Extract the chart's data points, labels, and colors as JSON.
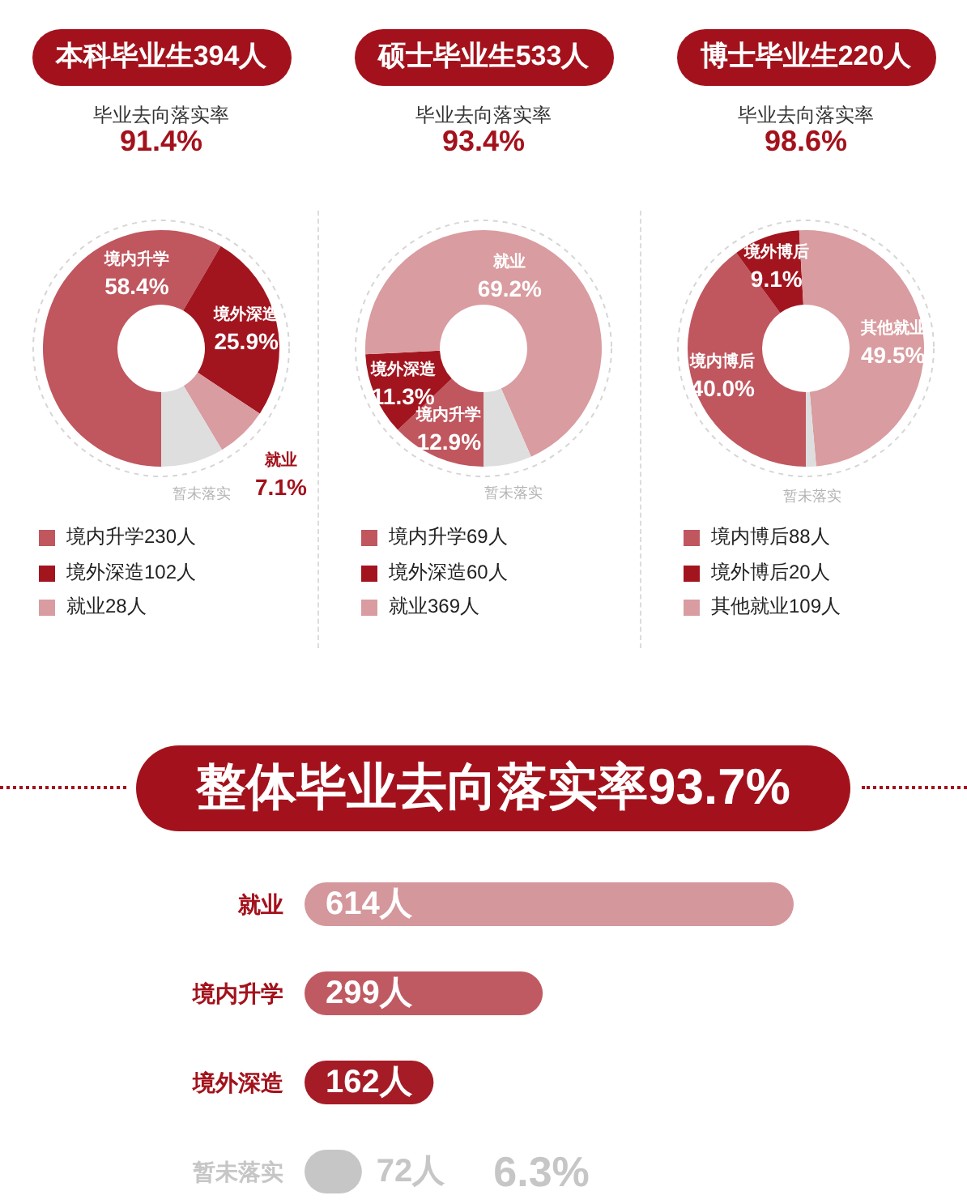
{
  "chart_data": [
    {
      "type": "donut",
      "title": "本科毕业生394人",
      "subtitle": "毕业去向落实率",
      "annotations": [
        "91.4%",
        "230人",
        "102人",
        "28人"
      ],
      "categories": [
        "境内升学",
        "境外深造",
        "就业",
        "暂未落实"
      ],
      "values": [
        58.4,
        25.9,
        7.1,
        8.6
      ],
      "value_labels": [
        "58.4%",
        "25.9%",
        "7.1%",
        null
      ],
      "colors": [
        "#c0565e",
        "#a2151f",
        "#d99ca0",
        "#dedede"
      ],
      "legend": "bottom"
    },
    {
      "type": "donut",
      "title": "硕士毕业生533人",
      "subtitle": "毕业去向落实率",
      "annotations": [
        "93.4%",
        "69人",
        "60人",
        "369人"
      ],
      "categories": [
        "境内升学",
        "境外深造",
        "就业",
        "暂未落实"
      ],
      "values": [
        12.9,
        11.3,
        69.2,
        6.6
      ],
      "value_labels": [
        "12.9%",
        "11.3%",
        "69.2%",
        null
      ],
      "colors": [
        "#c0565e",
        "#a2151f",
        "#d99ca0",
        "#dedede"
      ],
      "legend": "bottom"
    },
    {
      "type": "donut",
      "title": "博士毕业生220人",
      "subtitle": "毕业去向落实率",
      "annotations": [
        "98.6%",
        "88人",
        "20人",
        "109人"
      ],
      "categories": [
        "境内博后",
        "境外博后",
        "其他就业",
        "暂未落实"
      ],
      "values": [
        40.0,
        9.1,
        49.5,
        1.4
      ],
      "value_labels": [
        "40.0%",
        "9.1%",
        "49.5%",
        null
      ],
      "colors": [
        "#c0565e",
        "#a2151f",
        "#d99ca0",
        "#dedede"
      ],
      "legend": "bottom"
    },
    {
      "type": "bar",
      "orientation": "horizontal",
      "title": "整体毕业去向落实率93.7%",
      "categories": [
        "就业",
        "境内升学",
        "境外深造",
        "暂未落实"
      ],
      "values": [
        614,
        299,
        162,
        72
      ],
      "value_labels": [
        "614人",
        "299人",
        "162人",
        "72人"
      ],
      "colors": [
        "#d4979b",
        "#c05a62",
        "#a51c26",
        "#c6c6c6"
      ],
      "annotations": [
        "6.3%"
      ]
    }
  ]
}
